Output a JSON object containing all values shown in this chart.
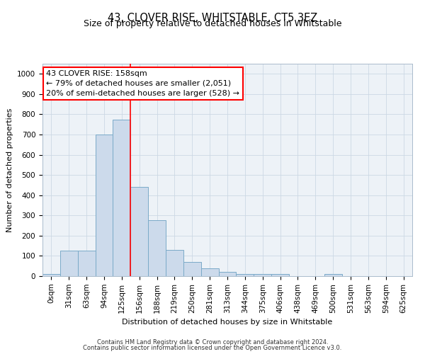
{
  "title": "43, CLOVER RISE, WHITSTABLE, CT5 3EZ",
  "subtitle": "Size of property relative to detached houses in Whitstable",
  "xlabel": "Distribution of detached houses by size in Whitstable",
  "ylabel": "Number of detached properties",
  "bar_color": "#ccdaeb",
  "bar_edge_color": "#7aaac8",
  "categories": [
    "0sqm",
    "31sqm",
    "63sqm",
    "94sqm",
    "125sqm",
    "156sqm",
    "188sqm",
    "219sqm",
    "250sqm",
    "281sqm",
    "313sqm",
    "344sqm",
    "375sqm",
    "406sqm",
    "438sqm",
    "469sqm",
    "500sqm",
    "531sqm",
    "563sqm",
    "594sqm",
    "625sqm"
  ],
  "values": [
    10,
    125,
    125,
    700,
    775,
    440,
    275,
    130,
    70,
    38,
    22,
    10,
    10,
    10,
    0,
    0,
    10,
    0,
    0,
    0,
    0
  ],
  "red_line_x": 4.5,
  "annotation_line1": "43 CLOVER RISE: 158sqm",
  "annotation_line2": "← 79% of detached houses are smaller (2,051)",
  "annotation_line3": "20% of semi-detached houses are larger (528) →",
  "annotation_box_color": "white",
  "annotation_border_color": "red",
  "ylim_max": 1050,
  "yticks": [
    0,
    100,
    200,
    300,
    400,
    500,
    600,
    700,
    800,
    900,
    1000
  ],
  "grid_color": "#ccd8e4",
  "bg_color": "#edf2f7",
  "footer_line1": "Contains HM Land Registry data © Crown copyright and database right 2024.",
  "footer_line2": "Contains public sector information licensed under the Open Government Licence v3.0.",
  "title_fontsize": 10.5,
  "subtitle_fontsize": 9,
  "ylabel_fontsize": 8,
  "xlabel_fontsize": 8,
  "tick_fontsize": 7.5,
  "annot_fontsize": 8,
  "footer_fontsize": 6
}
